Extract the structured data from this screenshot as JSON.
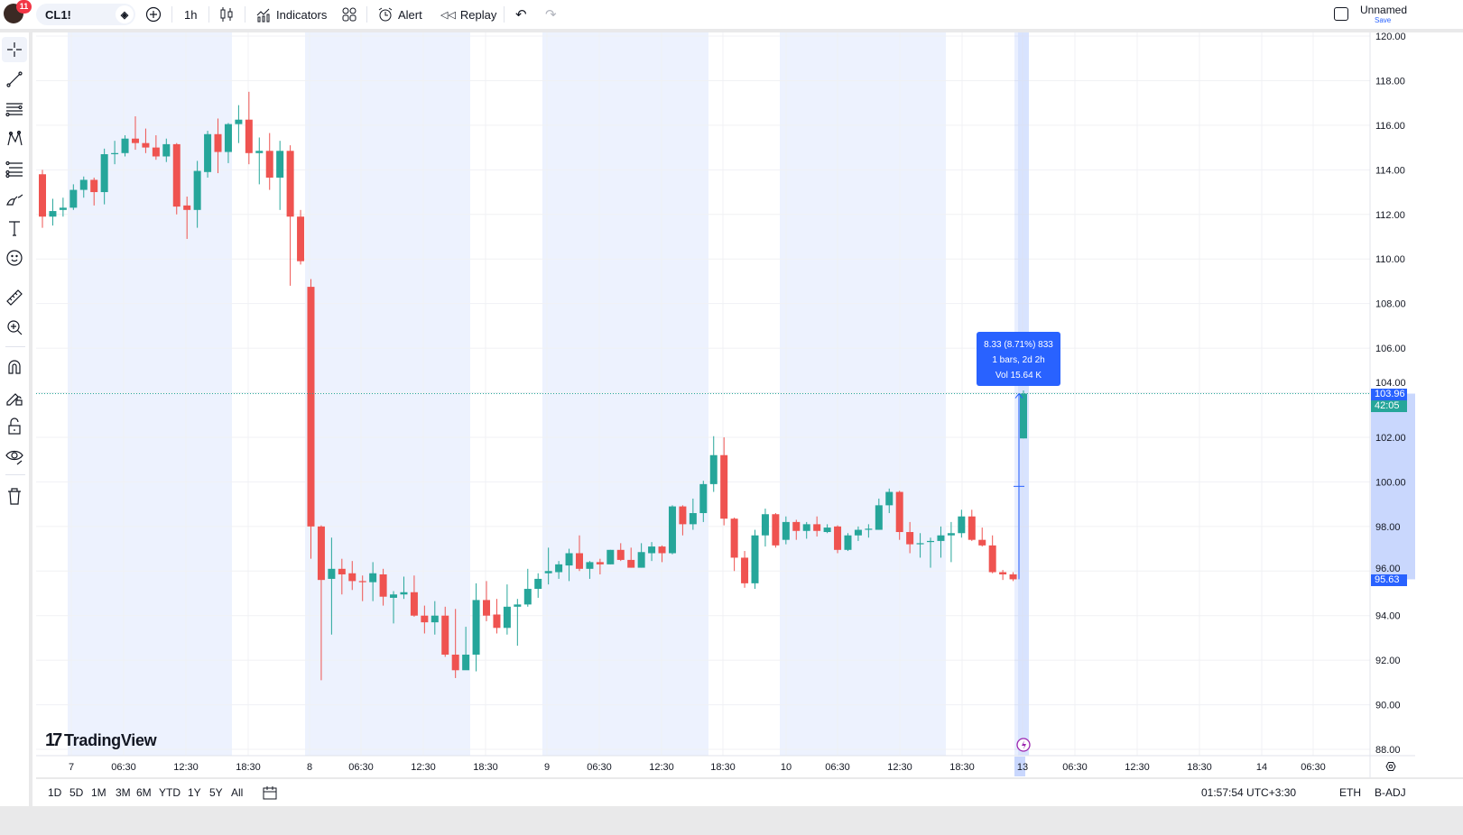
{
  "header": {
    "notifications": "11",
    "symbol": "CL1!",
    "interval": "1h",
    "indicators_label": "Indicators",
    "alert_label": "Alert",
    "replay_label": "Replay",
    "layout_name": "Unnamed",
    "save_label": "Save"
  },
  "left_toolbar": [
    "crosshair-icon",
    "trend-line-icon",
    "horizontal-lines-icon",
    "pattern-icon",
    "fib-icon",
    "brush-icon",
    "text-icon",
    "emoji-icon",
    "ruler-icon",
    "zoom-in-icon",
    "magnet-icon",
    "lock-drawing-icon",
    "lock-icon",
    "eye-icon",
    "trash-icon"
  ],
  "bottom_bar": {
    "ranges": [
      "1D",
      "5D",
      "1M",
      "3M",
      "6M",
      "YTD",
      "1Y",
      "5Y",
      "All"
    ],
    "clock": "01:57:54 UTC+3:30",
    "session": "ETH",
    "adjustment": "B-ADJ"
  },
  "measure_tooltip": {
    "line1": "8.33 (8.71%) 833",
    "line2": "1 bars, 2d 2h",
    "line3": "Vol 15.64 K"
  },
  "price_tags": {
    "last": "103.96",
    "countdown": "42:05",
    "measure_start": "95.63"
  },
  "watermark": "TradingView",
  "colors": {
    "up": "#26a69a",
    "down": "#ef5350",
    "accent": "#2962ff",
    "session_bg": "#edf2fe"
  },
  "chart_data": {
    "type": "candlestick",
    "ylim": [
      87.5,
      120.2
    ],
    "y_ticks": [
      "120.00",
      "118.00",
      "116.00",
      "114.00",
      "112.00",
      "110.00",
      "108.00",
      "106.00",
      "104.00",
      "102.00",
      "100.00",
      "98.00",
      "96.00",
      "94.00",
      "92.00",
      "90.00",
      "88.00"
    ],
    "x_ticks": [
      "7",
      "06:30",
      "12:30",
      "18:30",
      "8",
      "06:30",
      "12:30",
      "18:30",
      "9",
      "06:30",
      "12:30",
      "18:30",
      "10",
      "06:30",
      "12:30",
      "18:30",
      "13",
      "06:30",
      "12:30",
      "18:30",
      "14",
      "06:30"
    ],
    "highlighted_x_tick": "13",
    "last_price": 103.96,
    "ohlc": [
      [
        113.8,
        114.0,
        111.4,
        111.9
      ],
      [
        111.9,
        112.7,
        111.5,
        112.15
      ],
      [
        112.2,
        112.75,
        111.9,
        112.3
      ],
      [
        112.3,
        113.35,
        112.2,
        113.1
      ],
      [
        113.1,
        113.7,
        112.75,
        113.55
      ],
      [
        113.55,
        113.65,
        112.4,
        113.0
      ],
      [
        113.0,
        114.95,
        112.45,
        114.7
      ],
      [
        114.7,
        115.3,
        114.25,
        114.75
      ],
      [
        114.75,
        115.55,
        114.6,
        115.4
      ],
      [
        115.4,
        116.4,
        114.9,
        115.2
      ],
      [
        115.2,
        115.85,
        114.75,
        115.0
      ],
      [
        115.0,
        115.55,
        114.45,
        114.6
      ],
      [
        114.6,
        115.4,
        114.35,
        115.15
      ],
      [
        115.15,
        115.2,
        112.0,
        112.35
      ],
      [
        112.4,
        112.8,
        110.9,
        112.2
      ],
      [
        112.2,
        114.4,
        111.4,
        113.95
      ],
      [
        113.9,
        115.75,
        113.65,
        115.6
      ],
      [
        115.6,
        116.3,
        113.85,
        114.8
      ],
      [
        114.8,
        116.1,
        114.3,
        116.05
      ],
      [
        116.05,
        116.9,
        115.2,
        116.25
      ],
      [
        116.25,
        117.5,
        114.25,
        114.75
      ],
      [
        114.75,
        115.45,
        113.35,
        114.85
      ],
      [
        114.85,
        115.65,
        113.1,
        113.65
      ],
      [
        113.65,
        115.3,
        112.2,
        114.85
      ],
      [
        114.85,
        115.1,
        108.8,
        111.9
      ],
      [
        111.9,
        112.2,
        109.75,
        109.9
      ],
      [
        108.75,
        109.1,
        96.55,
        98.0
      ],
      [
        98.0,
        98.05,
        91.1,
        95.6
      ],
      [
        95.65,
        97.5,
        93.15,
        96.1
      ],
      [
        96.1,
        96.55,
        94.95,
        95.85
      ],
      [
        95.9,
        96.45,
        95.15,
        95.55
      ],
      [
        95.55,
        95.8,
        94.65,
        95.5
      ],
      [
        95.5,
        96.4,
        94.65,
        95.9
      ],
      [
        95.85,
        96.1,
        94.45,
        94.85
      ],
      [
        94.8,
        95.1,
        93.65,
        94.95
      ],
      [
        94.95,
        95.75,
        94.75,
        95.05
      ],
      [
        95.05,
        95.8,
        93.95,
        94.0
      ],
      [
        94.0,
        94.45,
        93.2,
        93.7
      ],
      [
        93.7,
        94.65,
        93.15,
        94.0
      ],
      [
        94.0,
        94.4,
        92.15,
        92.25
      ],
      [
        92.25,
        94.3,
        91.2,
        91.55
      ],
      [
        91.55,
        93.5,
        91.8,
        92.25
      ],
      [
        92.25,
        95.45,
        91.5,
        94.7
      ],
      [
        94.7,
        95.55,
        93.75,
        94.0
      ],
      [
        94.05,
        94.75,
        93.2,
        93.45
      ],
      [
        93.45,
        95.4,
        93.15,
        94.4
      ],
      [
        94.4,
        94.75,
        92.65,
        94.5
      ],
      [
        94.5,
        96.1,
        94.4,
        95.2
      ],
      [
        95.2,
        95.9,
        94.8,
        95.65
      ],
      [
        95.9,
        97.05,
        95.4,
        96.0
      ],
      [
        95.95,
        96.45,
        95.65,
        96.3
      ],
      [
        96.25,
        97.0,
        95.55,
        96.8
      ],
      [
        96.8,
        97.6,
        96.0,
        96.1
      ],
      [
        96.1,
        96.45,
        95.65,
        96.4
      ],
      [
        96.4,
        96.55,
        95.85,
        96.3
      ],
      [
        96.3,
        96.95,
        96.3,
        96.95
      ],
      [
        96.95,
        97.25,
        96.45,
        96.5
      ],
      [
        96.5,
        97.05,
        96.15,
        96.15
      ],
      [
        96.15,
        97.25,
        96.15,
        96.85
      ],
      [
        96.8,
        97.3,
        96.45,
        97.1
      ],
      [
        97.1,
        97.15,
        96.4,
        96.8
      ],
      [
        96.8,
        98.95,
        96.75,
        98.9
      ],
      [
        98.9,
        98.95,
        97.6,
        98.1
      ],
      [
        98.1,
        99.25,
        97.85,
        98.6
      ],
      [
        98.6,
        100.05,
        98.2,
        99.9
      ],
      [
        99.9,
        102.05,
        99.55,
        101.2
      ],
      [
        101.2,
        102.0,
        98.05,
        98.35
      ],
      [
        98.35,
        98.4,
        96.0,
        96.6
      ],
      [
        96.6,
        96.9,
        95.25,
        95.45
      ],
      [
        95.45,
        97.85,
        95.2,
        97.6
      ],
      [
        97.6,
        98.8,
        97.1,
        98.55
      ],
      [
        98.55,
        98.6,
        97.05,
        97.15
      ],
      [
        97.4,
        98.45,
        97.2,
        98.2
      ],
      [
        98.2,
        98.3,
        97.4,
        97.8
      ],
      [
        97.8,
        98.2,
        97.45,
        98.1
      ],
      [
        98.1,
        98.45,
        97.55,
        97.8
      ],
      [
        97.75,
        98.1,
        97.7,
        97.95
      ],
      [
        98.0,
        98.05,
        96.8,
        96.95
      ],
      [
        96.95,
        97.7,
        96.9,
        97.6
      ],
      [
        97.6,
        98.0,
        97.35,
        97.85
      ],
      [
        97.85,
        98.1,
        97.5,
        97.9
      ],
      [
        97.85,
        99.25,
        97.85,
        98.95
      ],
      [
        98.95,
        99.7,
        98.6,
        99.55
      ],
      [
        99.55,
        99.6,
        97.4,
        97.75
      ],
      [
        97.75,
        98.2,
        96.8,
        97.2
      ],
      [
        97.2,
        97.7,
        96.6,
        97.25
      ],
      [
        97.3,
        97.5,
        96.15,
        97.35
      ],
      [
        97.35,
        98.0,
        96.6,
        97.6
      ],
      [
        97.6,
        98.2,
        96.4,
        97.7
      ],
      [
        97.7,
        98.75,
        97.5,
        98.45
      ],
      [
        98.45,
        98.75,
        97.35,
        97.4
      ],
      [
        97.4,
        97.95,
        97.1,
        97.15
      ],
      [
        97.15,
        97.6,
        95.9,
        95.95
      ],
      [
        95.95,
        96.05,
        95.6,
        95.85
      ],
      [
        95.85,
        95.95,
        95.55,
        95.63
      ],
      [
        101.95,
        104.1,
        101.95,
        103.96
      ]
    ]
  }
}
